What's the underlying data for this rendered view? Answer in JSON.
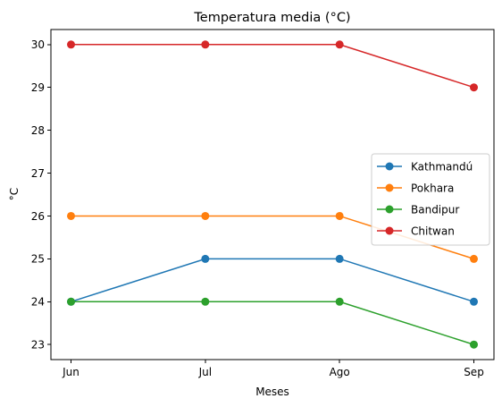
{
  "chart_data": {
    "type": "line",
    "title": "Temperatura media (°C)",
    "xlabel": "Meses",
    "ylabel": "°C",
    "categories": [
      "Jun",
      "Jul",
      "Ago",
      "Sep"
    ],
    "ylim": [
      22.65,
      30.35
    ],
    "yticks": [
      23,
      24,
      25,
      26,
      27,
      28,
      29,
      30
    ],
    "grid": false,
    "legend_position": "center-right",
    "series": [
      {
        "name": "Kathmandú",
        "color": "#1f77b4",
        "values": [
          24,
          25,
          25,
          24
        ]
      },
      {
        "name": "Pokhara",
        "color": "#ff7f0e",
        "values": [
          26,
          26,
          26,
          25
        ]
      },
      {
        "name": "Bandipur",
        "color": "#2ca02c",
        "values": [
          24,
          24,
          24,
          23
        ]
      },
      {
        "name": "Chitwan",
        "color": "#d62728",
        "values": [
          30,
          30,
          30,
          29
        ]
      }
    ]
  }
}
